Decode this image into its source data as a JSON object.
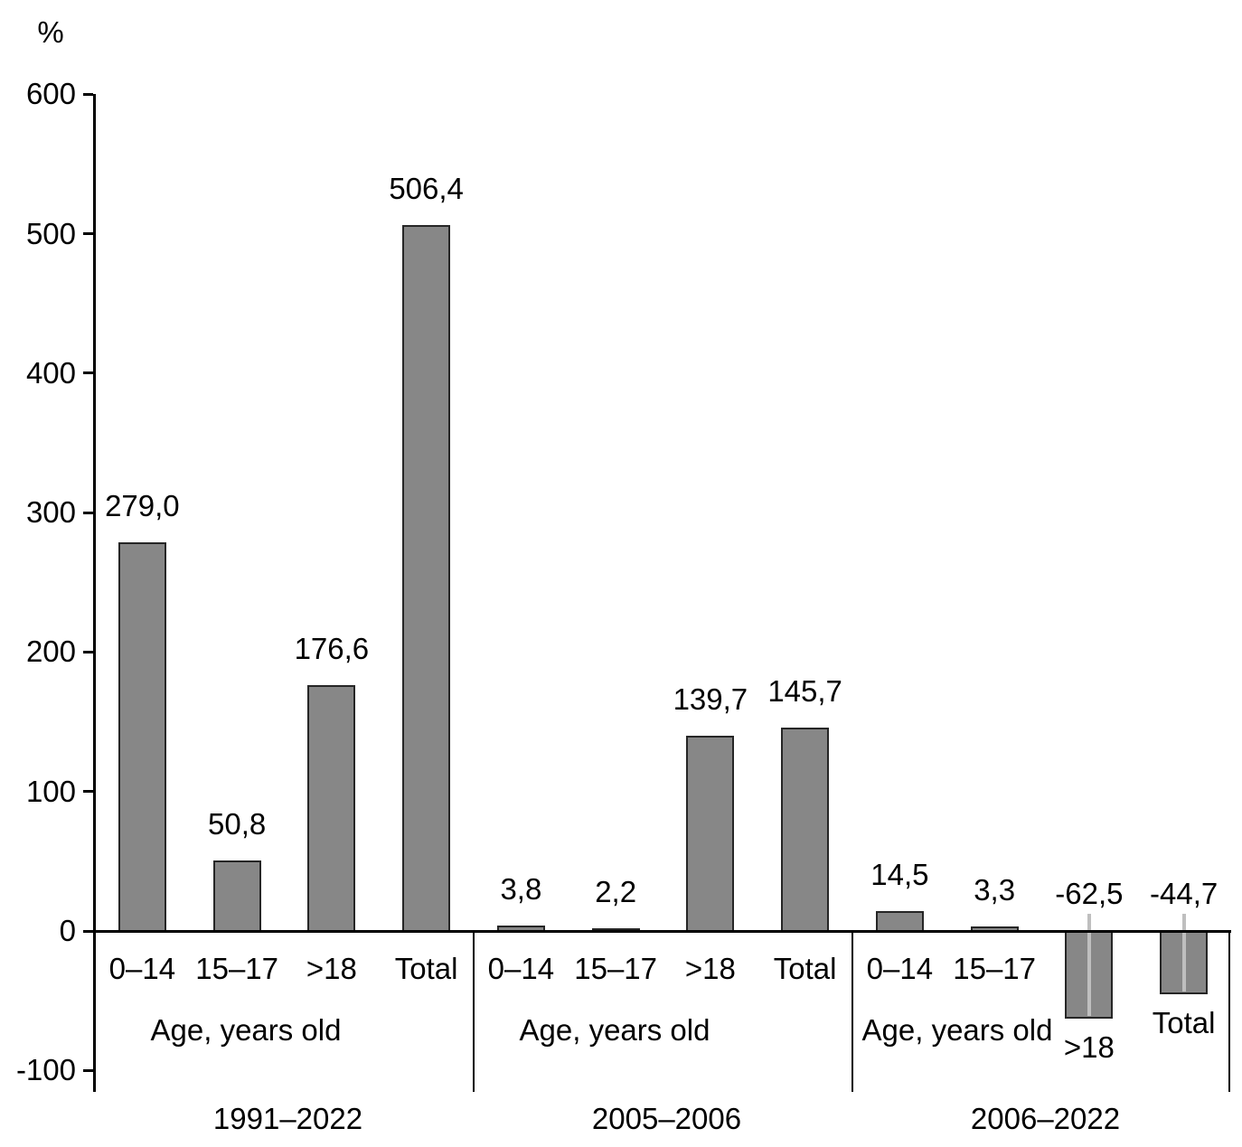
{
  "chart_data": {
    "type": "bar",
    "title": "",
    "ylabel": "%",
    "xlabel": "",
    "ylim": [
      -100,
      600
    ],
    "grid": false,
    "legend": false,
    "bar_color": "#878787",
    "bar_border_color": "#262626",
    "leader_line_color": "#bfbfbf",
    "axis_color": "#000000",
    "age_axis_label": "Age, years old",
    "yticks": [
      {
        "label": "600",
        "value": 600
      },
      {
        "label": "500",
        "value": 500
      },
      {
        "label": "400",
        "value": 400
      },
      {
        "label": "300",
        "value": 300
      },
      {
        "label": "200",
        "value": 200
      },
      {
        "label": "100",
        "value": 100
      },
      {
        "label": "0",
        "value": 0
      },
      {
        "label": "-100",
        "value": -100
      }
    ],
    "groups": [
      {
        "label": "1991–2022",
        "categories": [
          "0–14",
          "15–17",
          ">18",
          "Total"
        ],
        "values": [
          279.0,
          50.8,
          176.6,
          506.4
        ],
        "value_labels": [
          "279,0",
          "50,8",
          "176,6",
          "506,4"
        ]
      },
      {
        "label": "2005–2006",
        "categories": [
          "0–14",
          "15–17",
          ">18",
          "Total"
        ],
        "values": [
          3.8,
          2.2,
          139.7,
          145.7
        ],
        "value_labels": [
          "3,8",
          "2,2",
          "139,7",
          "145,7"
        ]
      },
      {
        "label": "2006–2022",
        "categories": [
          "0–14",
          "15–17",
          ">18",
          "Total"
        ],
        "values": [
          14.5,
          3.3,
          -62.5,
          -44.7
        ],
        "value_labels": [
          "14,5",
          "3,3",
          "-62,5",
          "-44,7"
        ]
      }
    ]
  }
}
